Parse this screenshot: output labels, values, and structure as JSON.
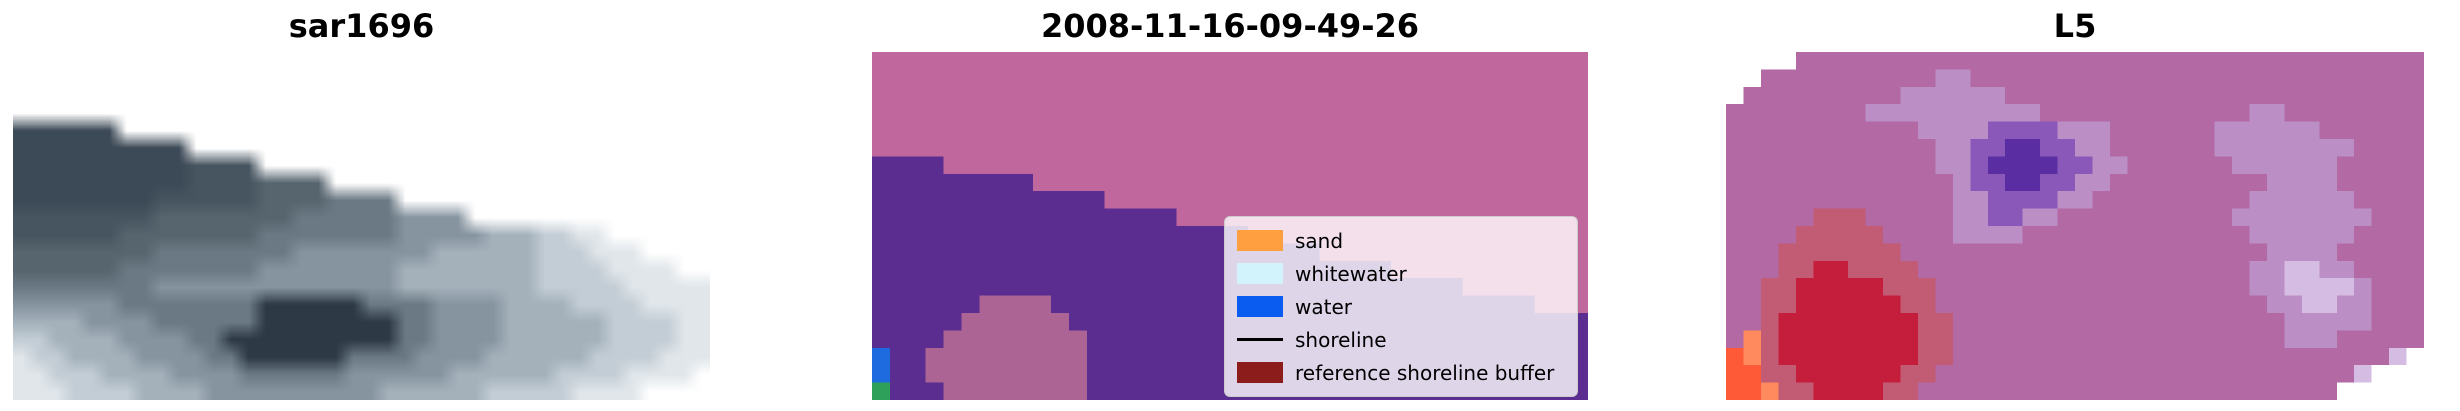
{
  "chart_data": [
    {
      "type": "heatmap",
      "title": "sar1696",
      "description": "grayscale-blue SAR backscatter image with stepped no-data edge",
      "palette": {
        ".": "#ffffff",
        "A": "#3c4956",
        "B": "#475561",
        "C": "#57656f",
        "D": "#6b7984",
        "E": "#8694a0",
        "F": "#a4b1bb",
        "G": "#c3cdd5",
        "H": "#e0e6ea",
        "K": "#2d3a45"
      },
      "grid": [
        "........................................",
        "........................................",
        "........................................",
        "........................................",
        "AAAAAA..................................",
        "AAAAAAAAAA..............................",
        "AAAAAAAAAABBBB..........................",
        "AAAAAAAAAABBBBCCCC......................",
        "AAAAAAAABBBBBBCCCCDDDD..................",
        "BBBBBBBBCCCCCCCCDDDDDDEEEE..............",
        "BBBBBBCCCCCCCCDDDDDDDDEEEEEFFFGGHH......",
        "CCCCCCCCDDDDDDDDEEEEEEEEFFFFFFGGGHHH....",
        "CCCCCCDDDDDDDDEEEEEEEEFFFFFFFFGGGGHHHH..",
        "DDDDDDDDEEEEEEEEEEEEEEFFFFFFFFGGGGGHHHHH",
        "EEEEEEDDDDDDDDKKKKKKDDDDEEEEFFFFGGGGHHHH",
        "FFFFEEEEDDDDDDKKKKKKKKDDEEEEFFFFFFGGGGHH",
        "GGFFFFEEEEDDKKKKKKKKKKDDEEEEFFFFFFGGGGHH",
        "HGGFFFFEEEEDDKKKKKKDDDDEEEEFFFFFFGGGGHHH",
        "HHGGGFFFFEEEEDDDDDDEEEEEEFFFFFFGGGGHHHH.",
        "HHHGGGGFFFFEEEEEEEEEEFFFFFFGGGGGHHHH...."
      ]
    },
    {
      "type": "heatmap",
      "title": "2008-11-16-09-49-26",
      "description": "classified satellite image: pink land class over purple class with small blue/green water pixels",
      "palette": {
        "P": "#c0679d",
        "U": "#5b2d90",
        "M": "#ab6494",
        "b": "#1e6be0",
        "g": "#2fa05a"
      },
      "grid": [
        "PPPPPPPPPPPPPPPPPPPPPPPPPPPPPPPPPPPPPPPP",
        "PPPPPPPPPPPPPPPPPPPPPPPPPPPPPPPPPPPPPPPP",
        "PPPPPPPPPPPPPPPPPPPPPPPPPPPPPPPPPPPPPPPP",
        "PPPPPPPPPPPPPPPPPPPPPPPPPPPPPPPPPPPPPPPP",
        "PPPPPPPPPPPPPPPPPPPPPPPPPPPPPPPPPPPPPPPP",
        "PPPPPPPPPPPPPPPPPPPPPPPPPPPPPPPPPPPPPPPP",
        "UUUUPPPPPPPPPPPPPPPPPPPPPPPPPPPPPPPPPPPP",
        "UUUUUUUUUPPPPPPPPPPPPPPPPPPPPPPPPPPPPPPP",
        "UUUUUUUUUUUUUPPPPPPPPPPPPPPPPPPPPPPPPPPP",
        "UUUUUUUUUUUUUUUUUPPPPPPPPPPPPPPPPPPPPPPP",
        "UUUUUUUUUUUUUUUUUUUUUPPPPPPPPPPPPPPPPPPP",
        "UUUUUUUUUUUUUUUUUUUUUUUUUPPPPPPPPPPPPPPP",
        "UUUUUUUUUUUUUUUUUUUUUUUUUUUUUPPPPPPPPPPP",
        "UUUUUUUUUUUUUUUUUUUUUUUUUUUUUUUUUPPPPPPP",
        "UUUUUUMMMMUUUUUUUUUUUUUUUUUUUUUUUUUUUPPP",
        "UUUUUMMMMMMUUUUUUUUUUUUUUUUUUUUUUUUUUUUU",
        "UUUUMMMMMMMMUUUUUUUUUUUUUUUUUUUUUUUUUUUU",
        "bUUMMMMMMMMMUUUUUUUUUUUUUUUUUUUUUUUUUUUU",
        "bUUMMMMMMMMMUUUUUUUUUUUUUUUUUUUUUUUUUUUU",
        "gUUUMMMMMMMMUUUUUUUUUUUUUUUUUUUUUUUUUUUU"
      ],
      "legend": {
        "position": "lower right",
        "entries": [
          {
            "label": "sand",
            "swatch": "patch",
            "color": "#ff9f40"
          },
          {
            "label": "whitewater",
            "swatch": "patch",
            "color": "#d3f3fc"
          },
          {
            "label": "water",
            "swatch": "patch",
            "color": "#0a5cf0"
          },
          {
            "label": "shoreline",
            "swatch": "line",
            "color": "#000000"
          },
          {
            "label": "reference shoreline buffer",
            "swatch": "patch",
            "color": "#8c1c1c"
          }
        ]
      }
    },
    {
      "type": "heatmap",
      "title": "L5",
      "description": "false-color Landsat 5 image: mauve background, violet blob top-center, crimson blob and orange corner lower-left, lavender patches right",
      "palette": {
        ".": "#ffffff",
        "P": "#b269a4",
        "L": "#bc8ec6",
        "l": "#d4bce2",
        "V": "#5b2da2",
        "v": "#8a58b8",
        "R": "#c51d3c",
        "r": "#c25c74",
        "O": "#ff5a38",
        "o": "#ff8a5e"
      },
      "grid": [
        "....PPPPPPPPPPPPPPPPPPPPPPPPPPPPPPPPPPPP",
        "..PPPPPPPPPPLLPPPPPPPPPPPPPPPPPPPPPPPPPP",
        ".PPPPPPPPPLLLLLLPPPPPPPPPPPPPPPPPPPPPPPP",
        "PPPPPPPPLLLLLLLLLLPPPPPPPPPPPPLLPPPPPPPP",
        "PPPPPPPPPPPLLLLvvvvLLLPPPPPPLLLLLLPPPPPP",
        "PPPPPPPPPPPPLLvvVVvvLLPPPPPPLLLLLLLLPPPP",
        "PPPPPPPPPPPPLLvVVVVvvLLPPPPPPLLLLLLPPPPP",
        "PPPPPPPPPPPPPLvvVVvvLLPPPPPPPPPLLLLPPPPP",
        "PPPPPPPPPPPPPLLvvvvLLPPPPPPPPPLLLLLLPPPP",
        "PPPPPrrrPPPPPLLvvLLPPPPPPPPPPLLLLLLLLPPP",
        "PPPPrrrrrPPPPLLLLPPPPPPPPPPPPPLLLLLLPPPP",
        "PPPrrrrrrrPPPPPPPPPPPPPPPPPPPPPLLLLPPPPP",
        "PPPrrRRrrrrPPPPPPPPPPPPPPPPPPPLLllLLPPPP",
        "PPrrRRRRRrrrPPPPPPPPPPPPPPPPPPLLllllLPPP",
        "PPrrRRRRRRrrPPPPPPPPPPPPPPPPPPPLLllLLPPP",
        "PPrRRRRRRRRrrPPPPPPPPPPPPPPPPPPPLLLLLPPP",
        "PorRRRRRRRRrrPPPPPPPPPPPPPPPPPPPLLLPPPPP",
        "OorRRRRRRRRrrPPPPPPPPPPPPPPPPPPPPPPPPPl.",
        "OOrrRRRRRRrrPPPPPPPPPPPPPPPPPPPPPPPPl...",
        "OOorrRRRRrrPPPPPPPPPPPPPPPPPPPPPPPP....."
      ]
    }
  ]
}
